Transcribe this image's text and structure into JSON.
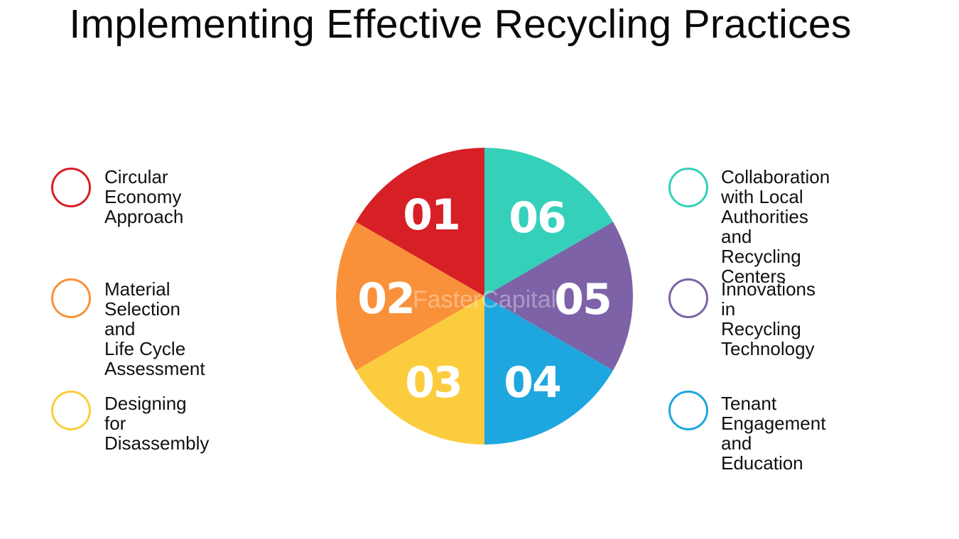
{
  "title": "Implementing Effective Recycling Practices",
  "watermark": "FasterCapital",
  "segments": [
    {
      "number": "01",
      "label": "Circular Economy\nApproach",
      "color": "#d71f26"
    },
    {
      "number": "02",
      "label": "Material Selection and\nLife Cycle Assessment",
      "color": "#f9913a"
    },
    {
      "number": "03",
      "label": "Designing for\nDisassembly",
      "color": "#fbcd3e"
    },
    {
      "number": "04",
      "label": "Tenant Engagement and\nEducation",
      "color": "#1ea7de"
    },
    {
      "number": "05",
      "label": "Innovations in Recycling\nTechnology",
      "color": "#7d62a8"
    },
    {
      "number": "06",
      "label": "Collaboration with Local\nAuthorities and Recycling\nCenters",
      "color": "#35d0b9"
    }
  ]
}
